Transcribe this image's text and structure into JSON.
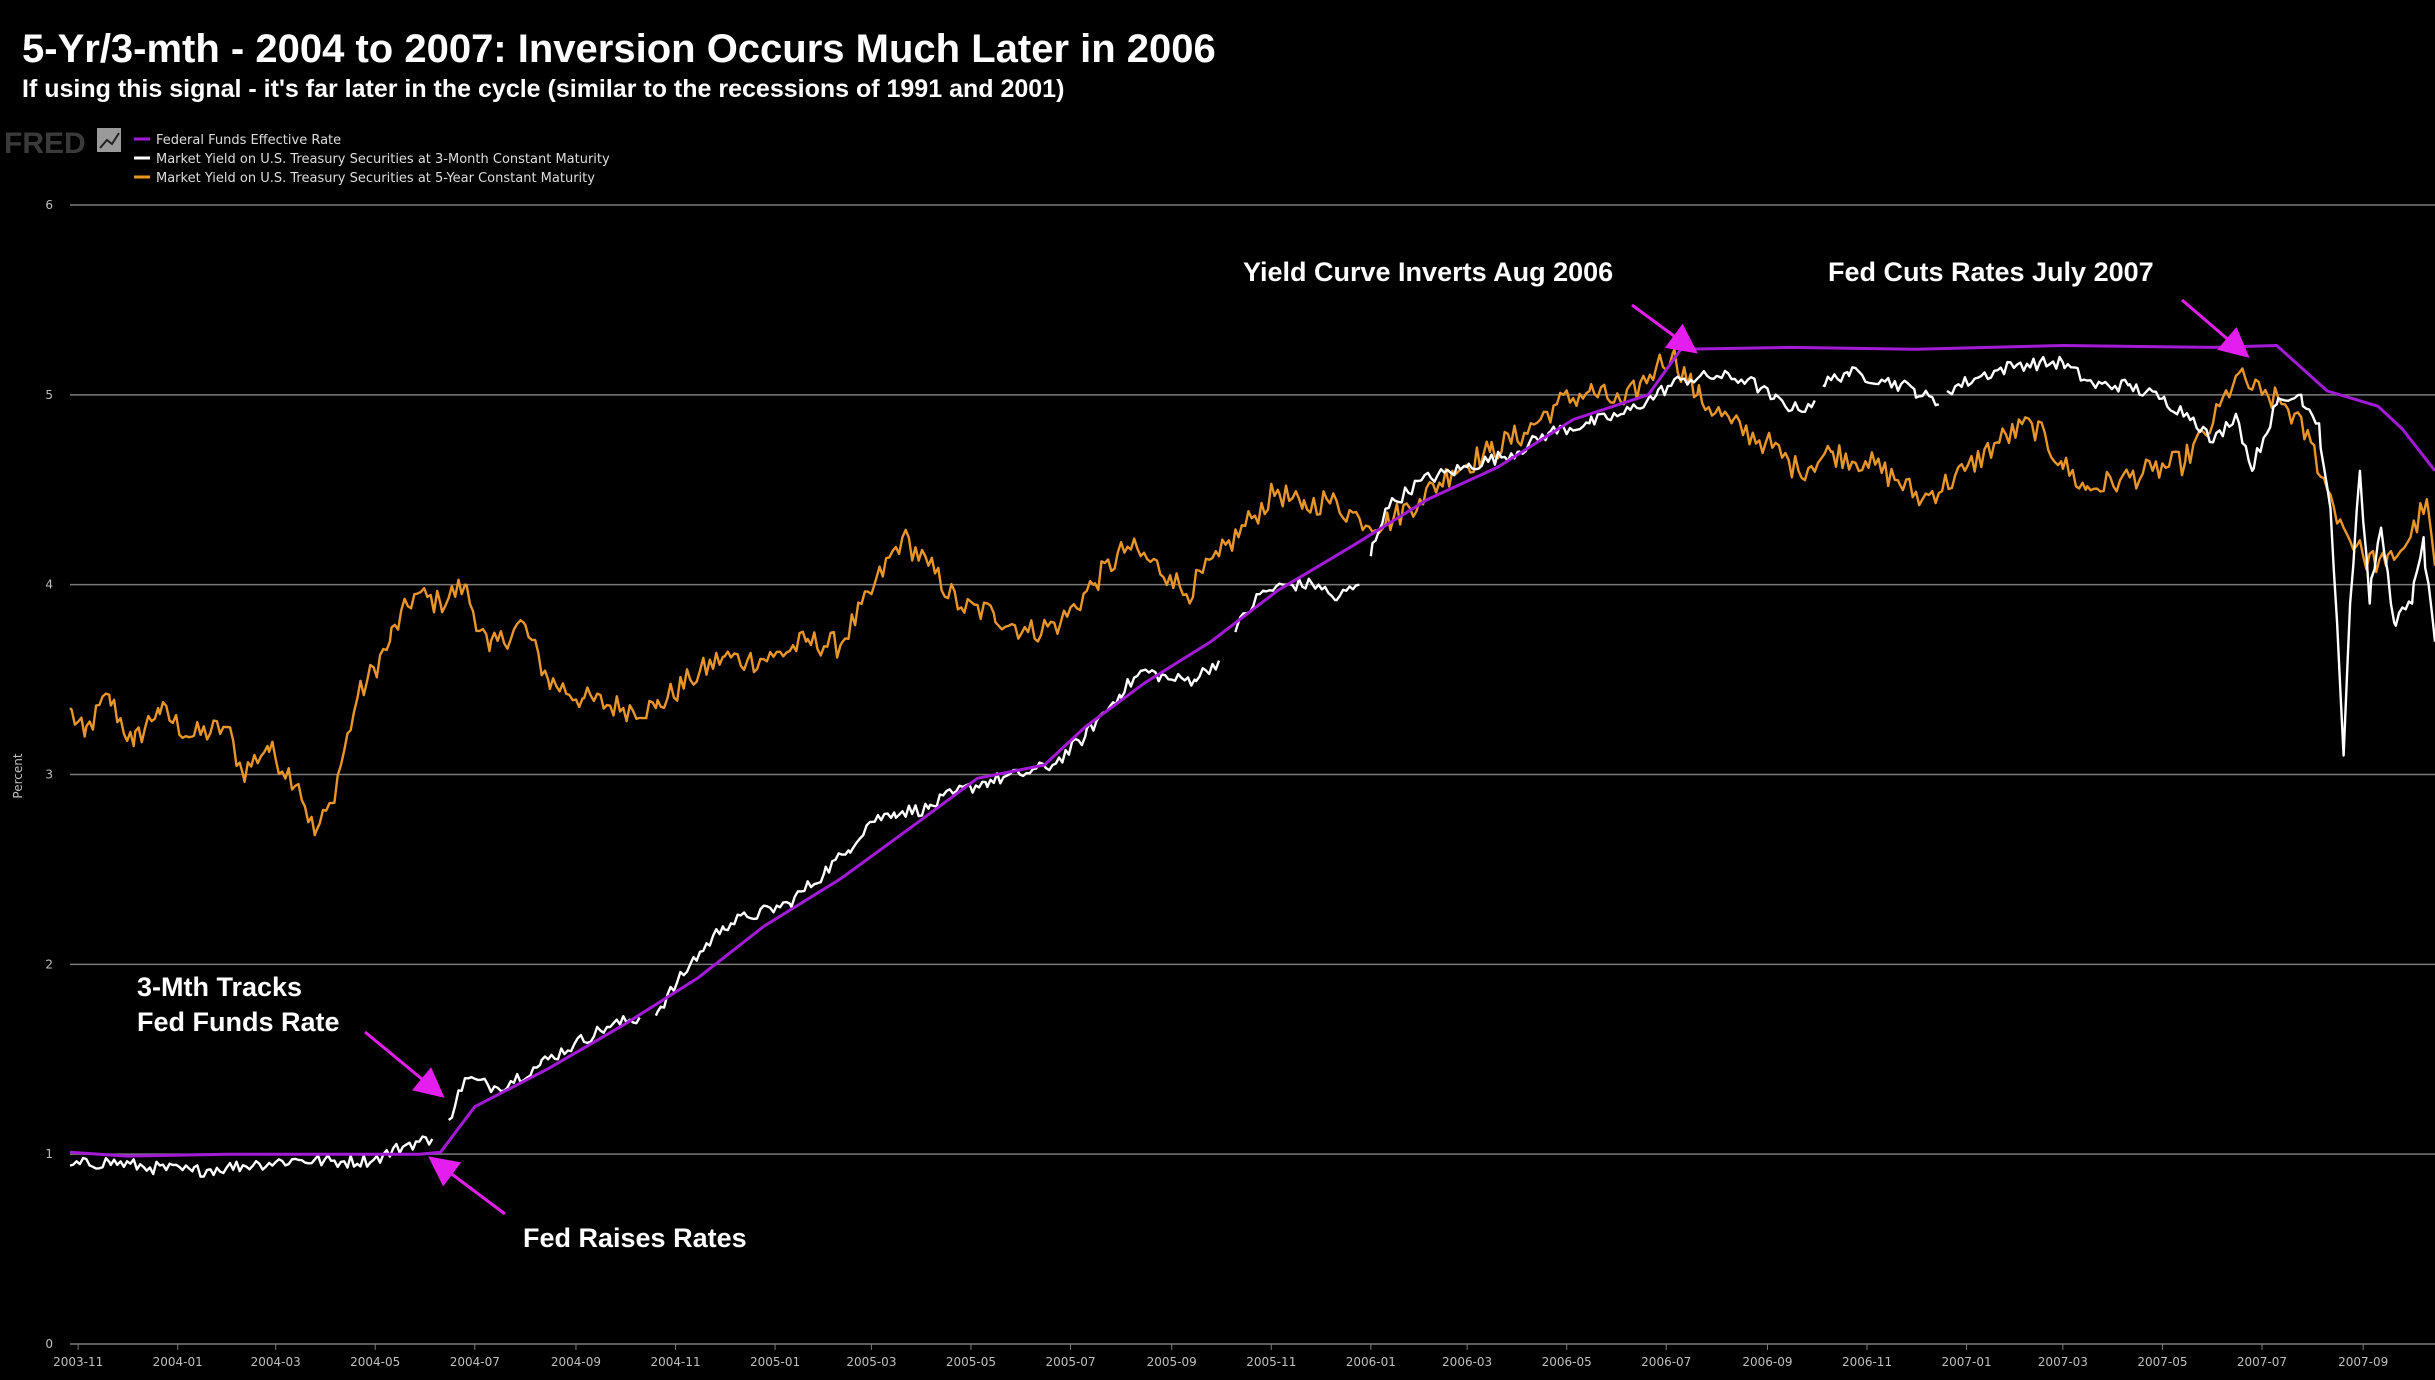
{
  "colors": {
    "background": "#000000",
    "fed_funds": "#a31bd6",
    "three_month": "#ffffff",
    "five_year": "#e8952a",
    "grid": "#7a7a7a",
    "arrow": "#e51ef0"
  },
  "logo_text": "FRED",
  "chart_data": {
    "type": "line",
    "title": "5-Yr/3-mth - 2004 to 2007: Inversion Occurs Much Later in 2006",
    "subtitle": "If using this signal - it's far later in the cycle (similar to the recessions of 1991 and 2001)",
    "xlabel": "",
    "ylabel": "Percent",
    "xlim": [
      "2003-10-27",
      "2007-10-15"
    ],
    "ylim": [
      0,
      6
    ],
    "grid": true,
    "legend_position": "top-left",
    "x_ticks": [
      {
        "date": "2003-11-01",
        "label": "2003-11"
      },
      {
        "date": "2004-01-01",
        "label": "2004-01"
      },
      {
        "date": "2004-03-01",
        "label": "2004-03"
      },
      {
        "date": "2004-05-01",
        "label": "2004-05"
      },
      {
        "date": "2004-07-01",
        "label": "2004-07"
      },
      {
        "date": "2004-09-01",
        "label": "2004-09"
      },
      {
        "date": "2004-11-01",
        "label": "2004-11"
      },
      {
        "date": "2005-01-01",
        "label": "2005-01"
      },
      {
        "date": "2005-03-01",
        "label": "2005-03"
      },
      {
        "date": "2005-05-01",
        "label": "2005-05"
      },
      {
        "date": "2005-07-01",
        "label": "2005-07"
      },
      {
        "date": "2005-09-01",
        "label": "2005-09"
      },
      {
        "date": "2005-11-01",
        "label": "2005-11"
      },
      {
        "date": "2006-01-01",
        "label": "2006-01"
      },
      {
        "date": "2006-03-01",
        "label": "2006-03"
      },
      {
        "date": "2006-05-01",
        "label": "2006-05"
      },
      {
        "date": "2006-07-01",
        "label": "2006-07"
      },
      {
        "date": "2006-09-01",
        "label": "2006-09"
      },
      {
        "date": "2006-11-01",
        "label": "2006-11"
      },
      {
        "date": "2007-01-01",
        "label": "2007-01"
      },
      {
        "date": "2007-03-01",
        "label": "2007-03"
      },
      {
        "date": "2007-05-01",
        "label": "2007-05"
      },
      {
        "date": "2007-07-01",
        "label": "2007-07"
      },
      {
        "date": "2007-09-01",
        "label": "2007-09"
      }
    ],
    "y_ticks": [
      0,
      1,
      2,
      3,
      4,
      5,
      6
    ],
    "series": [
      {
        "name": "Federal Funds Effective Rate",
        "color_key": "fed_funds",
        "points": [
          [
            "2003-10-27",
            1.01
          ],
          [
            "2003-12-01",
            0.99
          ],
          [
            "2004-02-01",
            1.0
          ],
          [
            "2004-04-01",
            1.0
          ],
          [
            "2004-05-28",
            1.0
          ],
          [
            "2004-06-10",
            1.01
          ],
          [
            "2004-07-01",
            1.25
          ],
          [
            "2004-08-15",
            1.45
          ],
          [
            "2004-09-30",
            1.68
          ],
          [
            "2004-11-15",
            1.93
          ],
          [
            "2004-12-25",
            2.2
          ],
          [
            "2005-02-10",
            2.45
          ],
          [
            "2005-03-25",
            2.72
          ],
          [
            "2005-05-05",
            2.98
          ],
          [
            "2005-06-15",
            3.05
          ],
          [
            "2005-07-10",
            3.25
          ],
          [
            "2005-08-15",
            3.48
          ],
          [
            "2005-09-25",
            3.7
          ],
          [
            "2005-11-05",
            3.97
          ],
          [
            "2005-12-20",
            4.2
          ],
          [
            "2006-02-05",
            4.45
          ],
          [
            "2006-03-20",
            4.62
          ],
          [
            "2006-05-05",
            4.87
          ],
          [
            "2006-06-20",
            5.0
          ],
          [
            "2006-07-10",
            5.24
          ],
          [
            "2006-09-15",
            5.25
          ],
          [
            "2006-12-01",
            5.24
          ],
          [
            "2007-03-01",
            5.26
          ],
          [
            "2007-06-01",
            5.25
          ],
          [
            "2007-07-10",
            5.26
          ],
          [
            "2007-08-10",
            5.02
          ],
          [
            "2007-09-10",
            4.94
          ],
          [
            "2007-09-25",
            4.82
          ],
          [
            "2007-10-15",
            4.6
          ]
        ]
      },
      {
        "name": "Market Yield on U.S. Treasury Securities at 3-Month Constant Maturity",
        "color_key": "three_month",
        "segments": [
          [
            [
              "2003-10-27",
              0.94
            ],
            [
              "2003-11-20",
              0.96
            ],
            [
              "2003-12-15",
              0.93
            ],
            [
              "2004-01-10",
              0.91
            ],
            [
              "2004-01-31",
              0.93
            ],
            [
              "2004-02-20",
              0.95
            ],
            [
              "2004-03-15",
              0.97
            ],
            [
              "2004-04-10",
              0.96
            ],
            [
              "2004-04-30",
              0.97
            ],
            [
              "2004-05-20",
              1.05
            ],
            [
              "2004-06-05",
              1.08
            ]
          ],
          [
            [
              "2004-06-15",
              1.18
            ],
            [
              "2004-06-25",
              1.4
            ],
            [
              "2004-07-15",
              1.35
            ],
            [
              "2004-08-10",
              1.47
            ],
            [
              "2004-08-31",
              1.58
            ],
            [
              "2004-09-20",
              1.67
            ],
            [
              "2004-10-10",
              1.72
            ]
          ],
          [
            [
              "2004-10-20",
              1.73
            ],
            [
              "2004-11-10",
              2.0
            ],
            [
              "2004-11-30",
              2.2
            ],
            [
              "2004-12-15",
              2.25
            ],
            [
              "2005-01-10",
              2.32
            ],
            [
              "2005-01-31",
              2.48
            ],
            [
              "2005-02-15",
              2.6
            ],
            [
              "2005-02-28",
              2.75
            ],
            [
              "2005-03-15",
              2.8
            ],
            [
              "2005-04-05",
              2.82
            ],
            [
              "2005-04-20",
              2.9
            ],
            [
              "2005-05-10",
              2.96
            ],
            [
              "2005-05-31",
              3.0
            ],
            [
              "2005-06-20",
              3.05
            ],
            [
              "2005-07-10",
              3.2
            ],
            [
              "2005-07-31",
              3.42
            ],
            [
              "2005-08-15",
              3.55
            ],
            [
              "2005-09-01",
              3.5
            ],
            [
              "2005-09-15",
              3.5
            ],
            [
              "2005-09-30",
              3.6
            ]
          ],
          [
            [
              "2005-10-10",
              3.75
            ],
            [
              "2005-10-25",
              3.95
            ],
            [
              "2005-11-10",
              4.0
            ],
            [
              "2005-11-30",
              4.0
            ],
            [
              "2005-12-10",
              3.92
            ],
            [
              "2005-12-25",
              4.0
            ]
          ],
          [
            [
              "2006-01-01",
              4.15
            ],
            [
              "2006-01-10",
              4.4
            ],
            [
              "2006-02-01",
              4.55
            ],
            [
              "2006-03-01",
              4.62
            ],
            [
              "2006-04-01",
              4.7
            ],
            [
              "2006-04-20",
              4.8
            ],
            [
              "2006-05-15",
              4.85
            ],
            [
              "2006-06-05",
              4.9
            ],
            [
              "2006-06-25",
              5.0
            ],
            [
              "2006-07-10",
              5.08
            ],
            [
              "2006-08-01",
              5.1
            ],
            [
              "2006-08-20",
              5.08
            ],
            [
              "2006-09-05",
              4.98
            ],
            [
              "2006-09-20",
              4.92
            ],
            [
              "2006-09-30",
              4.97
            ]
          ],
          [
            [
              "2006-10-05",
              5.05
            ],
            [
              "2006-10-20",
              5.12
            ],
            [
              "2006-11-10",
              5.08
            ],
            [
              "2006-11-30",
              5.03
            ],
            [
              "2006-12-15",
              4.95
            ]
          ],
          [
            [
              "2006-12-20",
              5.02
            ],
            [
              "2007-01-10",
              5.1
            ],
            [
              "2007-02-01",
              5.16
            ],
            [
              "2007-03-01",
              5.17
            ],
            [
              "2007-03-20",
              5.05
            ],
            [
              "2007-04-10",
              5.05
            ],
            [
              "2007-05-01",
              4.98
            ],
            [
              "2007-05-20",
              4.88
            ],
            [
              "2007-06-01",
              4.75
            ],
            [
              "2007-06-15",
              4.9
            ],
            [
              "2007-06-25",
              4.6
            ],
            [
              "2007-07-10",
              4.95
            ],
            [
              "2007-07-25",
              5.0
            ],
            [
              "2007-08-05",
              4.85
            ],
            [
              "2007-08-12",
              4.4
            ],
            [
              "2007-08-16",
              3.8
            ],
            [
              "2007-08-20",
              3.1
            ],
            [
              "2007-08-24",
              3.9
            ],
            [
              "2007-08-30",
              4.6
            ],
            [
              "2007-09-05",
              3.9
            ],
            [
              "2007-09-12",
              4.3
            ],
            [
              "2007-09-20",
              3.8
            ],
            [
              "2007-10-01",
              3.9
            ],
            [
              "2007-10-08",
              4.25
            ],
            [
              "2007-10-15",
              3.7
            ]
          ]
        ]
      },
      {
        "name": "Market Yield on U.S. Treasury Securities at 5-Year Constant Maturity",
        "color_key": "five_year",
        "points": [
          [
            "2003-10-27",
            3.35
          ],
          [
            "2003-11-05",
            3.2
          ],
          [
            "2003-11-20",
            3.42
          ],
          [
            "2003-12-05",
            3.15
          ],
          [
            "2003-12-20",
            3.35
          ],
          [
            "2004-01-10",
            3.2
          ],
          [
            "2004-01-31",
            3.25
          ],
          [
            "2004-02-10",
            3.0
          ],
          [
            "2004-02-25",
            3.15
          ],
          [
            "2004-03-15",
            2.95
          ],
          [
            "2004-03-25",
            2.68
          ],
          [
            "2004-04-05",
            2.85
          ],
          [
            "2004-04-20",
            3.4
          ],
          [
            "2004-05-10",
            3.7
          ],
          [
            "2004-05-25",
            3.95
          ],
          [
            "2004-06-10",
            3.9
          ],
          [
            "2004-06-25",
            4.0
          ],
          [
            "2004-07-10",
            3.65
          ],
          [
            "2004-07-31",
            3.8
          ],
          [
            "2004-08-15",
            3.5
          ],
          [
            "2004-09-05",
            3.4
          ],
          [
            "2004-09-30",
            3.35
          ],
          [
            "2004-10-20",
            3.35
          ],
          [
            "2004-11-10",
            3.5
          ],
          [
            "2004-11-30",
            3.62
          ],
          [
            "2004-12-15",
            3.6
          ],
          [
            "2004-12-31",
            3.62
          ],
          [
            "2005-01-20",
            3.7
          ],
          [
            "2005-02-10",
            3.68
          ],
          [
            "2005-03-01",
            3.95
          ],
          [
            "2005-03-20",
            4.25
          ],
          [
            "2005-04-05",
            4.1
          ],
          [
            "2005-04-25",
            3.88
          ],
          [
            "2005-05-15",
            3.85
          ],
          [
            "2005-06-05",
            3.75
          ],
          [
            "2005-06-25",
            3.8
          ],
          [
            "2005-07-15",
            4.0
          ],
          [
            "2005-08-05",
            4.2
          ],
          [
            "2005-08-31",
            4.05
          ],
          [
            "2005-09-10",
            3.95
          ],
          [
            "2005-09-30",
            4.15
          ],
          [
            "2005-10-20",
            4.35
          ],
          [
            "2005-11-05",
            4.5
          ],
          [
            "2005-11-20",
            4.4
          ],
          [
            "2005-12-05",
            4.45
          ],
          [
            "2005-12-25",
            4.35
          ],
          [
            "2006-01-10",
            4.32
          ],
          [
            "2006-01-31",
            4.45
          ],
          [
            "2006-02-20",
            4.6
          ],
          [
            "2006-03-15",
            4.7
          ],
          [
            "2006-04-05",
            4.8
          ],
          [
            "2006-04-25",
            4.95
          ],
          [
            "2006-05-15",
            5.02
          ],
          [
            "2006-06-05",
            4.95
          ],
          [
            "2006-06-25",
            5.15
          ],
          [
            "2006-07-05",
            5.22
          ],
          [
            "2006-07-20",
            5.0
          ],
          [
            "2006-08-10",
            4.85
          ],
          [
            "2006-08-31",
            4.75
          ],
          [
            "2006-09-20",
            4.6
          ],
          [
            "2006-10-10",
            4.7
          ],
          [
            "2006-10-31",
            4.65
          ],
          [
            "2006-11-20",
            4.55
          ],
          [
            "2006-12-05",
            4.45
          ],
          [
            "2006-12-31",
            4.6
          ],
          [
            "2007-01-20",
            4.75
          ],
          [
            "2007-02-10",
            4.85
          ],
          [
            "2007-02-28",
            4.65
          ],
          [
            "2007-03-15",
            4.5
          ],
          [
            "2007-04-05",
            4.55
          ],
          [
            "2007-04-25",
            4.6
          ],
          [
            "2007-05-15",
            4.65
          ],
          [
            "2007-06-01",
            4.85
          ],
          [
            "2007-06-15",
            5.1
          ],
          [
            "2007-07-01",
            5.0
          ],
          [
            "2007-07-15",
            4.95
          ],
          [
            "2007-07-31",
            4.75
          ],
          [
            "2007-08-10",
            4.5
          ],
          [
            "2007-08-20",
            4.3
          ],
          [
            "2007-09-01",
            4.15
          ],
          [
            "2007-09-15",
            4.1
          ],
          [
            "2007-09-30",
            4.25
          ],
          [
            "2007-10-10",
            4.45
          ],
          [
            "2007-10-15",
            4.1
          ]
        ]
      }
    ],
    "annotations": [
      {
        "lines": [
          "Yield Curve Inverts Aug 2006"
        ],
        "arrow": true
      },
      {
        "lines": [
          "Fed Cuts Rates July 2007"
        ],
        "arrow": true
      },
      {
        "lines": [
          "3-Mth Tracks",
          "Fed Funds Rate"
        ],
        "arrow": true
      },
      {
        "lines": [
          "Fed Raises Rates"
        ],
        "arrow": true
      }
    ]
  }
}
